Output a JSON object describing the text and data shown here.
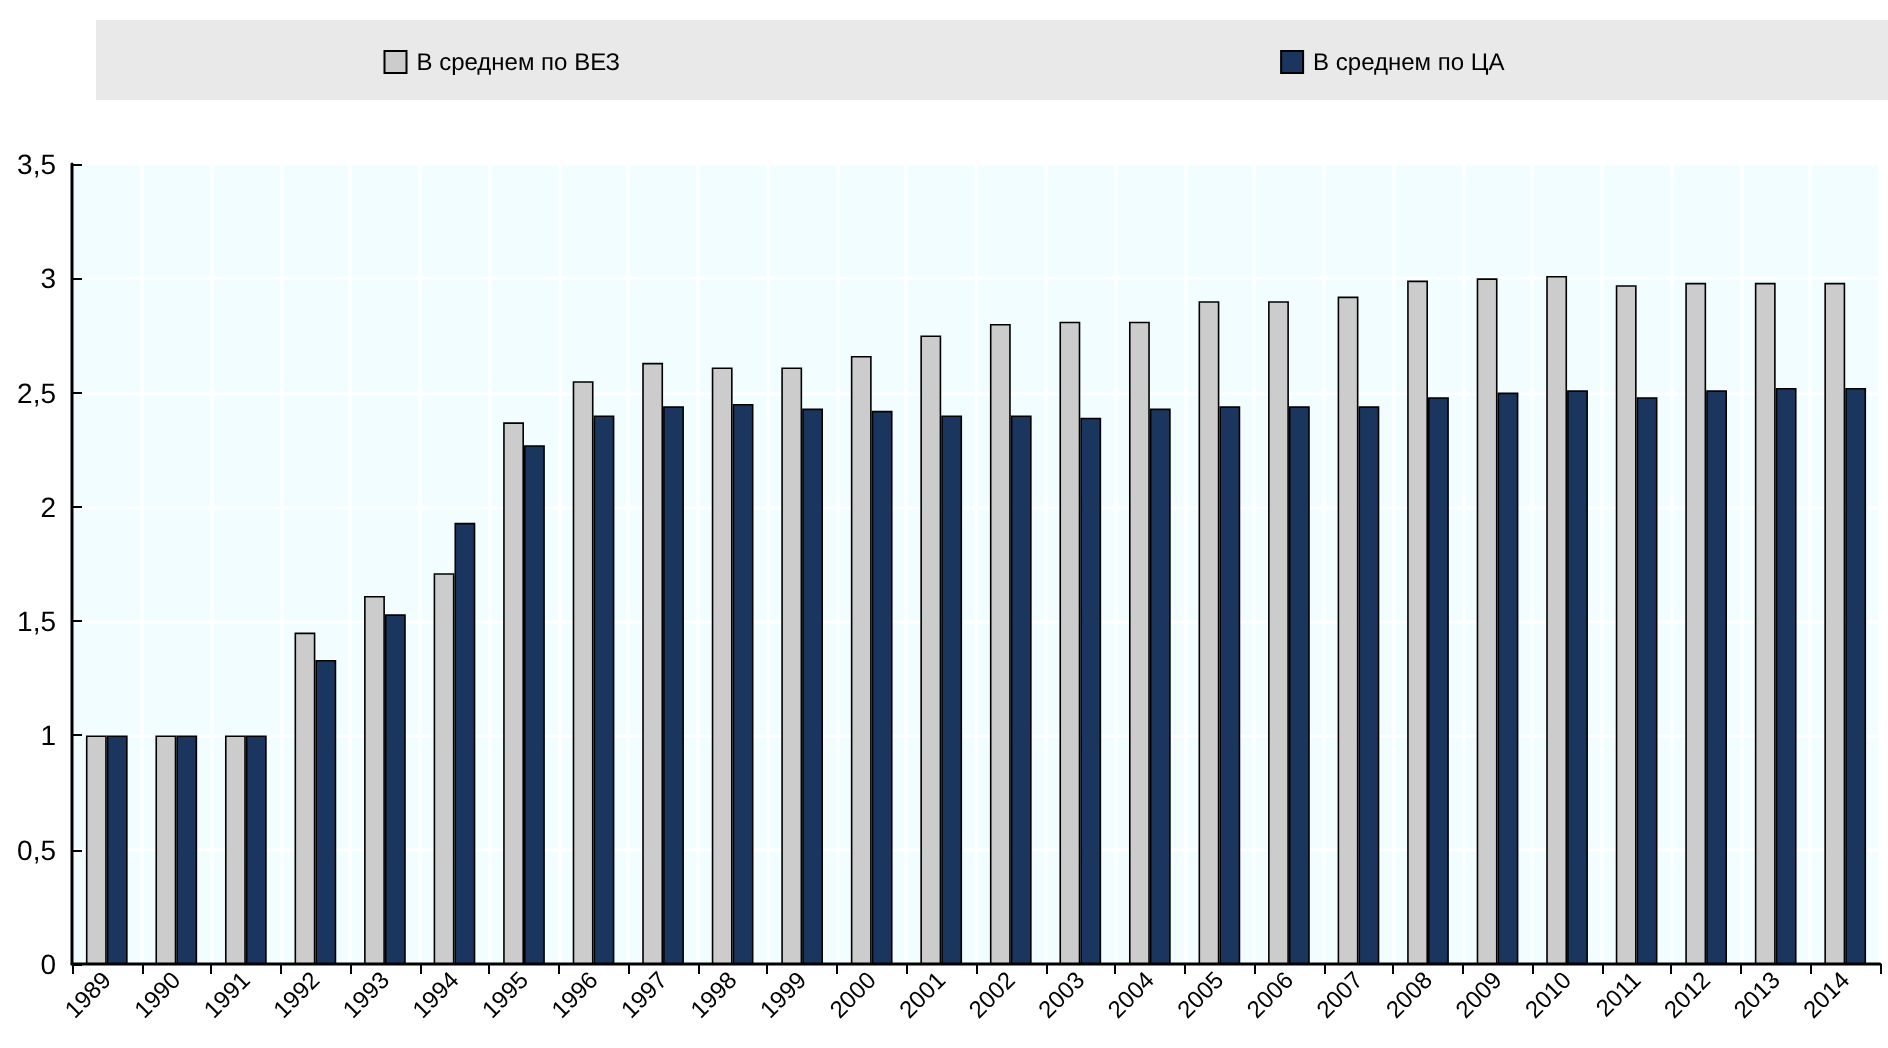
{
  "chart_data": {
    "type": "bar",
    "categories": [
      "1989",
      "1990",
      "1991",
      "1992",
      "1993",
      "1994",
      "1995",
      "1996",
      "1997",
      "1998",
      "1999",
      "2000",
      "2001",
      "2002",
      "2003",
      "2004",
      "2005",
      "2006",
      "2007",
      "2008",
      "2009",
      "2010",
      "2011",
      "2012",
      "2013",
      "2014"
    ],
    "series": [
      {
        "name": "В среднем по ВЕЗ",
        "color": "#cccccc",
        "values": [
          1,
          1,
          1,
          1.45,
          1.61,
          1.71,
          2.37,
          2.55,
          2.63,
          2.61,
          2.61,
          2.66,
          2.75,
          2.8,
          2.81,
          2.81,
          2.9,
          2.9,
          2.92,
          2.99,
          3.0,
          3.01,
          2.97,
          2.98,
          2.98,
          2.98
        ]
      },
      {
        "name": "В среднем по ЦА",
        "color": "#1a355e",
        "values": [
          1,
          1,
          1,
          1.33,
          1.53,
          1.93,
          2.27,
          2.4,
          2.44,
          2.45,
          2.43,
          2.42,
          2.4,
          2.4,
          2.39,
          2.43,
          2.44,
          2.44,
          2.44,
          2.48,
          2.5,
          2.51,
          2.48,
          2.51,
          2.52,
          2.52
        ]
      }
    ],
    "ylim": [
      0,
      3.5
    ],
    "yticks": [
      0,
      {
        "value": 0.5,
        "label": "0,5"
      },
      1,
      {
        "value": 1.5,
        "label": "1,5"
      },
      2,
      {
        "value": 2.5,
        "label": "2,5"
      },
      3,
      {
        "value": 3.5,
        "label": "3,5"
      }
    ],
    "grid": true,
    "legend": "top"
  }
}
